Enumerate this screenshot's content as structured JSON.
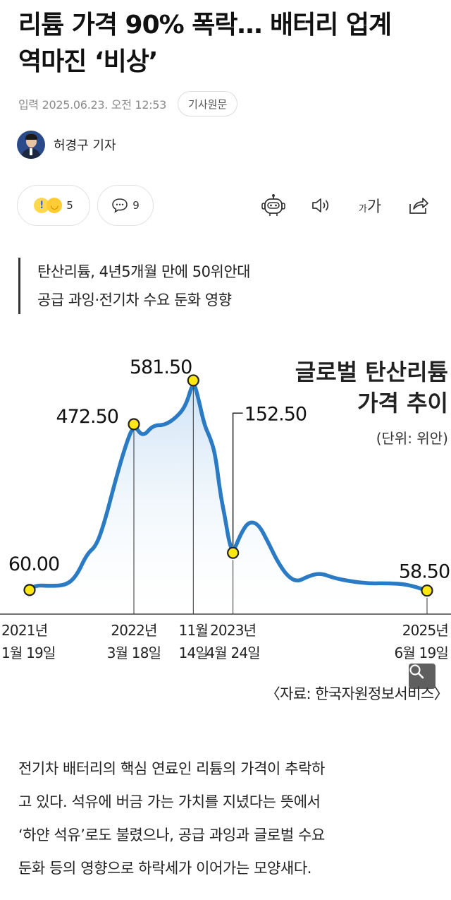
{
  "article": {
    "headline_lines": [
      "리튬 가격 90% 폭락… 배터리 업계",
      "역마진 ‘비상’"
    ],
    "date": "입력 2025.06.23. 오전 12:53",
    "original_button": "기사원문",
    "reporter": "허경구 기자"
  },
  "actions": {
    "reaction_count": "5",
    "comment_count": "9",
    "font_size_label": "가",
    "font_size_label_large": "가",
    "icons": [
      "summary-bot-icon",
      "speaker-icon",
      "font-size-icon",
      "share-icon"
    ]
  },
  "subhead_lines": [
    "탄산리튬, 4년5개월 만에 50위안대",
    "공급 과잉·전기차 수요 둔화 영향"
  ],
  "chart_data": {
    "type": "area",
    "title_lines": [
      "글로벌 탄산리튬",
      "가격 추이"
    ],
    "unit": "(단위: 위안)",
    "source": "〈자료: 한국자원정보서비스〉",
    "ylim": [
      0,
      620
    ],
    "points": [
      {
        "date": "2021-01-19",
        "value": 60.0,
        "label": "60.00",
        "tick_lines": [
          "2021년",
          "1월 19일"
        ]
      },
      {
        "date": "2022-03-18",
        "value": 472.5,
        "label": "472.50",
        "tick_lines": [
          "2022년",
          "3월 18일"
        ]
      },
      {
        "date": "2022-11-14",
        "value": 581.5,
        "label": "581.50",
        "tick_lines": [
          "11월",
          "14일"
        ]
      },
      {
        "date": "2023-04-24",
        "value": 152.5,
        "label": "152.50",
        "tick_lines": [
          "2023년",
          "4월 24일"
        ]
      },
      {
        "date": "2025-06-19",
        "value": 58.5,
        "label": "58.50",
        "tick_lines": [
          "2025년",
          "6월 19일"
        ]
      }
    ],
    "line_color": "#2a7bc4",
    "fill_top_color": "#cfe3f5",
    "marker_color": "#ffe812"
  },
  "body_lines": [
    "전기차 배터리의 핵심 연료인 리튬의 가격이 추락하",
    "고 있다. 석유에 버금 가는 가치를 지녔다는 뜻에서",
    "‘하얀 석유’로도 불렸으나, 공급 과잉과 글로벌 수요",
    "둔화 등의 영향으로 하락세가 이어가는 모양새다."
  ]
}
